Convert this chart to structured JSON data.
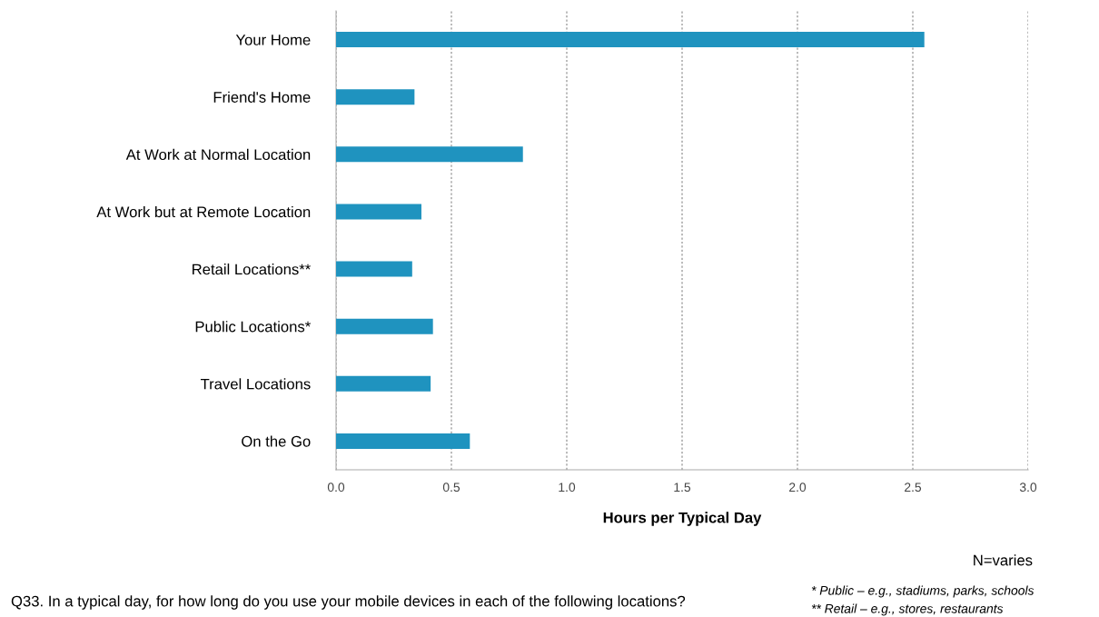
{
  "chart_data": {
    "type": "bar",
    "orientation": "horizontal",
    "xlabel": "Hours per Typical Day",
    "categories": [
      "Your Home",
      "Friend's Home",
      "At Work at Normal Location",
      "At Work but at Remote Location",
      "Retail Locations**",
      "Public Locations*",
      "Travel Locations",
      "On the Go"
    ],
    "values": [
      2.55,
      0.34,
      0.81,
      0.37,
      0.33,
      0.42,
      0.41,
      0.58
    ],
    "color": "#1f93bf",
    "xlim": [
      0,
      3.0
    ],
    "xticks": [
      {
        "value": 0,
        "label": "0.0"
      },
      {
        "value": 0.5,
        "label": "0.5"
      },
      {
        "value": 1.0,
        "label": "1.0"
      },
      {
        "value": 1.5,
        "label": "1.5"
      },
      {
        "value": 2.0,
        "label": "2.0"
      },
      {
        "value": 2.5,
        "label": "2.5"
      },
      {
        "value": 3.0,
        "label": "3.0"
      }
    ],
    "grid": "x",
    "legend": false,
    "annotations": [
      "N=varies",
      "Q33. In a typical day, for how long do you use your mobile devices in each of the following locations?",
      "* Public – e.g., stadiums, parks, schools",
      "** Retail – e.g., stores, restaurants"
    ]
  }
}
